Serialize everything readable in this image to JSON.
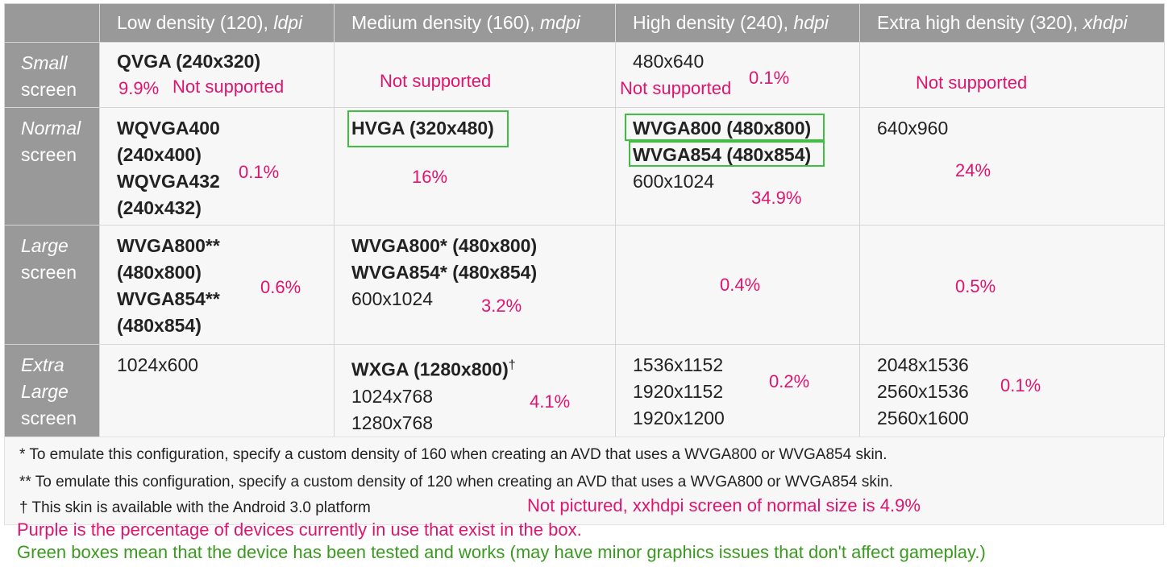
{
  "header": {
    "ldpi": {
      "label": "Low density (120), ",
      "abbr": "ldpi"
    },
    "mdpi": {
      "label": "Medium density (160), ",
      "abbr": "mdpi"
    },
    "hdpi": {
      "label": "High density (240), ",
      "abbr": "hdpi"
    },
    "xhdpi": {
      "label": "Extra high density (320), ",
      "abbr": "xhdpi"
    }
  },
  "rows": {
    "small": {
      "label_italic": "Small",
      "label": "screen",
      "ldpi": {
        "lines": [
          "QVGA (240x320)"
        ],
        "pct": "9.9%",
        "note": "Not supported"
      },
      "mdpi": {
        "note": "Not supported"
      },
      "hdpi": {
        "lines": [
          "480x640"
        ],
        "note": "Not supported",
        "pct": "0.1%"
      },
      "xhdpi": {
        "note": "Not supported"
      }
    },
    "normal": {
      "label_italic": "Normal",
      "label": "screen",
      "ldpi": {
        "lines": [
          "WQVGA400",
          "(240x400)",
          "WQVGA432",
          "(240x432)"
        ],
        "pct": "0.1%"
      },
      "mdpi": {
        "lines": [
          "HVGA (320x480)"
        ],
        "pct": "16%"
      },
      "hdpi": {
        "lines": [
          "WVGA800 (480x800)",
          "WVGA854 (480x854)",
          "600x1024"
        ],
        "pct": "34.9%"
      },
      "xhdpi": {
        "lines": [
          "640x960"
        ],
        "pct": "24%"
      }
    },
    "large": {
      "label_italic": "Large",
      "label": "screen",
      "ldpi": {
        "lines": [
          "WVGA800**",
          "(480x800)",
          "WVGA854**",
          "(480x854)"
        ],
        "pct": "0.6%"
      },
      "mdpi": {
        "lines": [
          "WVGA800* (480x800)",
          "WVGA854* (480x854)",
          "600x1024"
        ],
        "pct": "3.2%"
      },
      "hdpi": {
        "pct": "0.4%"
      },
      "xhdpi": {
        "pct": "0.5%"
      }
    },
    "xlarge": {
      "label_italic_1": "Extra",
      "label_italic_2": "Large",
      "label": "screen",
      "ldpi": {
        "lines": [
          "1024x600"
        ]
      },
      "mdpi": {
        "lines": [
          "WXGA (1280x800)",
          "1024x768",
          "1280x768"
        ],
        "dagger": "†",
        "pct": "4.1%"
      },
      "hdpi": {
        "lines": [
          "1536x1152",
          "1920x1152",
          "1920x1200"
        ],
        "pct": "0.2%"
      },
      "xhdpi": {
        "lines": [
          "2048x1536",
          "2560x1536",
          "2560x1600"
        ],
        "pct": "0.1%"
      }
    }
  },
  "footnotes": [
    "* To emulate this configuration, specify a custom density of 160 when creating an AVD that uses a WVGA800 or WVGA854 skin.",
    "** To emulate this configuration, specify a custom density of 120 when creating an AVD that uses a WVGA800 or WVGA854 skin.",
    "† This skin is available with the Android 3.0 platform"
  ],
  "annotations": {
    "not_pictured": "Not pictured, xxhdpi screen of normal size is 4.9%",
    "legend_purple": "Purple is the percentage of devices currently in use that exist in the box.",
    "legend_green": "Green boxes mean that the device has been tested and works (may have minor graphics issues that don't affect gameplay.)"
  },
  "colors": {
    "header_bg": "#999999",
    "cell_bg": "#f7f7f7",
    "percent": "#e0146e",
    "tested_box": "#3fbf3f",
    "legend_green": "#3a9a20"
  }
}
